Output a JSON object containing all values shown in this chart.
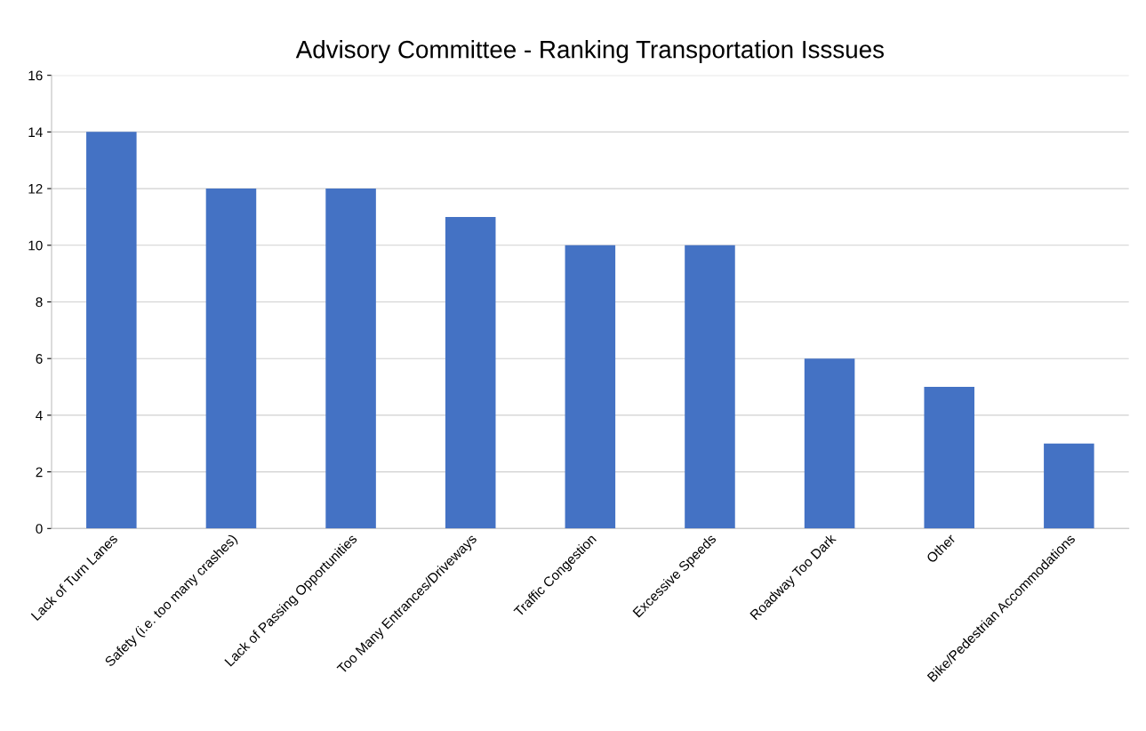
{
  "chart_data": {
    "type": "bar",
    "title": "Advisory Committee - Ranking Transportation Isssues",
    "categories": [
      "Lack of Turn Lanes",
      "Safety (i.e. too many crashes)",
      "Lack of Passing Opportunities",
      "Too Many Entrances/Driveways",
      "Traffic Congestion",
      "Excessive Speeds",
      "Roadway Too Dark",
      "Other",
      "Bike/Pedestrian Accommodations"
    ],
    "values": [
      14,
      12,
      12,
      11,
      10,
      10,
      6,
      5,
      3
    ],
    "color": "#4472c4",
    "ylim": [
      0,
      16
    ],
    "yticks": [
      0,
      2,
      4,
      6,
      8,
      10,
      12,
      14,
      16
    ],
    "grid": "y"
  }
}
